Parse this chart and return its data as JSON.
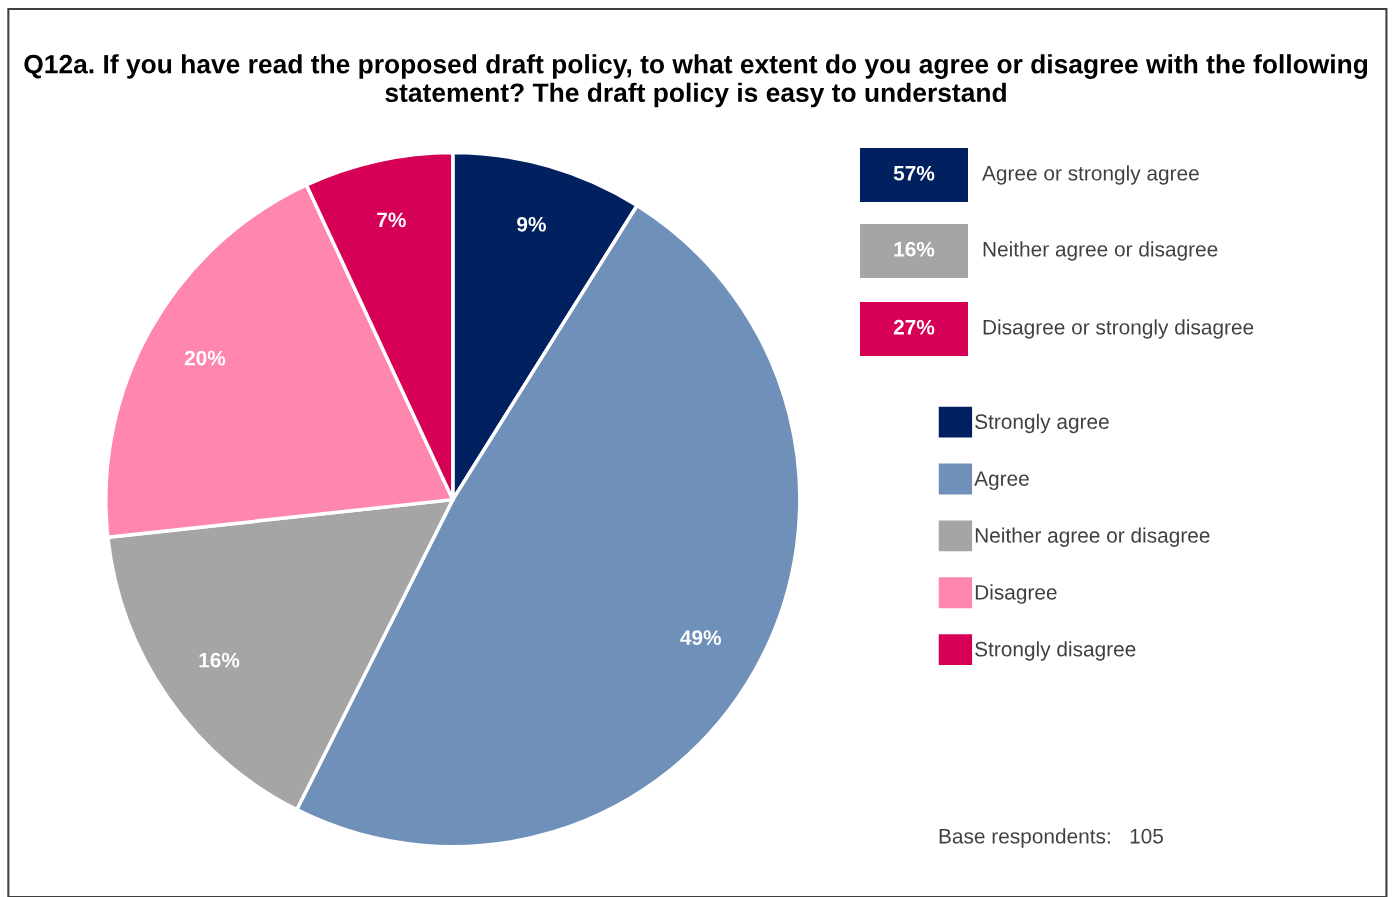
{
  "chart_data": {
    "type": "pie",
    "title": "Q12a. If you have read the proposed draft policy, to what extent do you agree or disagree with the following statement? The draft policy is easy to understand",
    "categories": [
      "Strongly agree",
      "Agree",
      "Neither agree or disagree",
      "Disagree",
      "Strongly disagree"
    ],
    "values": [
      9,
      49,
      16,
      20,
      7
    ],
    "colors": [
      "#002060",
      "#6f91b9",
      "#a5a5a5",
      "#ff86ad",
      "#d60057"
    ],
    "value_labels": [
      "9%",
      "49%",
      "16%",
      "20%",
      "7%"
    ],
    "legend": "right",
    "annotations": [
      "57%",
      "Agree or strongly agree",
      "16%",
      "Neither agree or disagree",
      "27%",
      "Disagree or strongly disagree",
      "Base respondents:   105"
    ]
  }
}
